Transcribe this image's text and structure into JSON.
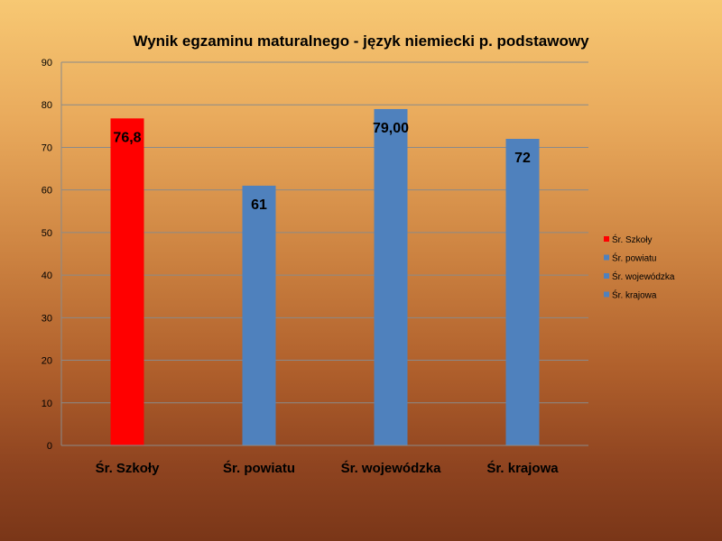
{
  "chart_data": {
    "type": "bar",
    "title": "Wynik egzaminu maturalnego - język niemiecki p. podstawowy",
    "categories": [
      "Śr. Szkoły",
      "Śr. powiatu",
      "Śr. wojewódzka",
      "Śr. krajowa"
    ],
    "values": [
      76.8,
      61,
      79,
      72
    ],
    "data_labels": [
      "76,8",
      "61",
      "79,00",
      "72"
    ],
    "colors": [
      "#ff0000",
      "#4f81bd",
      "#4f81bd",
      "#4f81bd"
    ],
    "ylim": [
      0,
      90
    ],
    "yticks": [
      0,
      10,
      20,
      30,
      40,
      50,
      60,
      70,
      80,
      90
    ],
    "grid": true,
    "legend": {
      "placement": "right",
      "entries": [
        {
          "label": "Śr. Szkoły",
          "color": "#ff0000"
        },
        {
          "label": "Śr. powiatu",
          "color": "#4f81bd"
        },
        {
          "label": "Śr. wojewódzka",
          "color": "#4f81bd"
        },
        {
          "label": "Śr. krajowa",
          "color": "#4f81bd"
        }
      ]
    },
    "xlabel": "",
    "ylabel": ""
  }
}
